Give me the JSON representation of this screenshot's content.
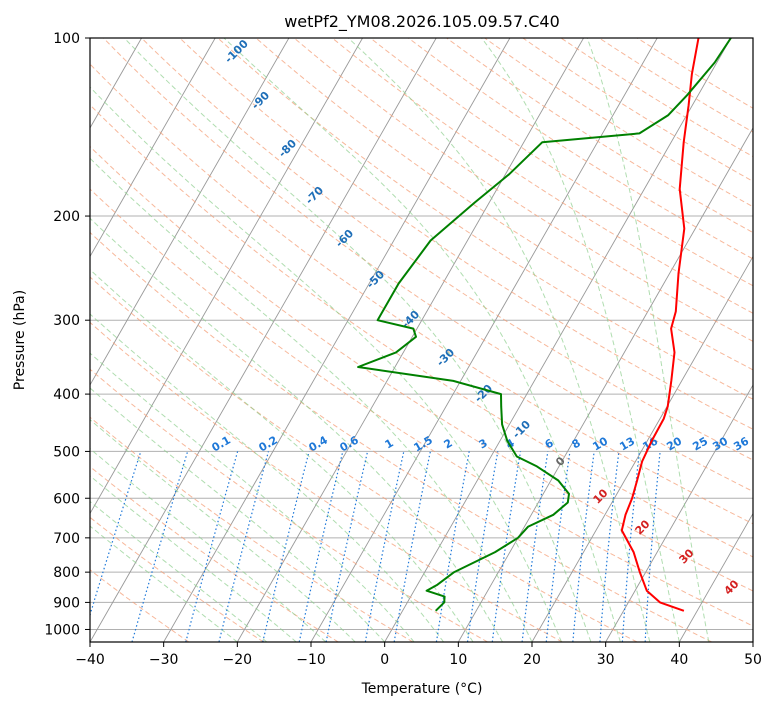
{
  "chart_data": {
    "type": "line",
    "title": "wetPf2_YM08.2026.105.09.57.C40",
    "xlabel": "Temperature (°C)",
    "ylabel": "Pressure (hPa)",
    "xlim": [
      -40,
      50
    ],
    "ylim": [
      1050,
      100
    ],
    "y_scale": "log",
    "grid": true,
    "x_ticks": [
      -40,
      -30,
      -20,
      -10,
      0,
      10,
      20,
      30,
      40,
      50
    ],
    "y_ticks": [
      100,
      200,
      300,
      400,
      500,
      600,
      700,
      800,
      900,
      1000
    ],
    "series": [
      {
        "color": "#ff0000",
        "points": [
          {
            "p": 930,
            "t": 38.2
          },
          {
            "p": 900,
            "t": 34.3
          },
          {
            "p": 860,
            "t": 31.6
          },
          {
            "p": 800,
            "t": 29.2
          },
          {
            "p": 740,
            "t": 26.8
          },
          {
            "p": 680,
            "t": 23.5
          },
          {
            "p": 640,
            "t": 22.8
          },
          {
            "p": 600,
            "t": 22.4
          },
          {
            "p": 560,
            "t": 21.7
          },
          {
            "p": 520,
            "t": 20.9
          },
          {
            "p": 480,
            "t": 20.6
          },
          {
            "p": 440,
            "t": 20.5
          },
          {
            "p": 420,
            "t": 20.1
          },
          {
            "p": 380,
            "t": 18.6
          },
          {
            "p": 340,
            "t": 16.8
          },
          {
            "p": 310,
            "t": 14.5
          },
          {
            "p": 290,
            "t": 13.8
          },
          {
            "p": 250,
            "t": 11.2
          },
          {
            "p": 210,
            "t": 8.5
          },
          {
            "p": 180,
            "t": 4.8
          },
          {
            "p": 150,
            "t": 1.7
          },
          {
            "p": 130,
            "t": -0.5
          },
          {
            "p": 115,
            "t": -2.5
          },
          {
            "p": 100,
            "t": -4.4
          }
        ]
      },
      {
        "color": "#008000",
        "points": [
          {
            "p": 930,
            "t": 4.5
          },
          {
            "p": 900,
            "t": 5.0
          },
          {
            "p": 880,
            "t": 4.6
          },
          {
            "p": 860,
            "t": 1.7
          },
          {
            "p": 840,
            "t": 2.7
          },
          {
            "p": 800,
            "t": 4.0
          },
          {
            "p": 740,
            "t": 8.0
          },
          {
            "p": 700,
            "t": 10.0
          },
          {
            "p": 670,
            "t": 10.5
          },
          {
            "p": 640,
            "t": 13.0
          },
          {
            "p": 610,
            "t": 14.0
          },
          {
            "p": 590,
            "t": 13.5
          },
          {
            "p": 560,
            "t": 11.0
          },
          {
            "p": 530,
            "t": 7.0
          },
          {
            "p": 510,
            "t": 3.5
          },
          {
            "p": 480,
            "t": 1.0
          },
          {
            "p": 450,
            "t": -1.0
          },
          {
            "p": 420,
            "t": -2.5
          },
          {
            "p": 400,
            "t": -3.5
          },
          {
            "p": 380,
            "t": -11.0
          },
          {
            "p": 360,
            "t": -25.0
          },
          {
            "p": 340,
            "t": -21.0
          },
          {
            "p": 320,
            "t": -19.5
          },
          {
            "p": 310,
            "t": -20.5
          },
          {
            "p": 300,
            "t": -26.0
          },
          {
            "p": 260,
            "t": -26.0
          },
          {
            "p": 220,
            "t": -25.0
          },
          {
            "p": 190,
            "t": -22.0
          },
          {
            "p": 170,
            "t": -19.5
          },
          {
            "p": 150,
            "t": -17.5
          },
          {
            "p": 145,
            "t": -5.0
          },
          {
            "p": 135,
            "t": -2.5
          },
          {
            "p": 125,
            "t": -1.5
          },
          {
            "p": 110,
            "t": -0.3
          },
          {
            "p": 100,
            "t": 0.0
          }
        ]
      }
    ],
    "mixing_ratio_labels": [
      "0.1",
      "0.2",
      "0.4",
      "0.6",
      "1",
      "1.5",
      "2",
      "3",
      "4",
      "6",
      "8",
      "10",
      "13",
      "16",
      "20",
      "25",
      "30",
      "36"
    ],
    "dry_adiabat_labels": [
      "-100",
      "-90",
      "-80",
      "-70",
      "-60",
      "-50",
      "-40",
      "-30",
      "-20",
      "-10"
    ],
    "moist_adiabat_labels": [
      "0",
      "10",
      "20",
      "30",
      "40"
    ],
    "colors": {
      "temperature": "#ff0000",
      "dewpoint": "#008000",
      "isotherm": "#999999",
      "dry_adiabat": "#f4a07a",
      "moist_adiabat": "#8fcf8f",
      "mixing_ratio": "#1e78d8",
      "dry_label": "#1f6fb8",
      "moist_label": "#d42020",
      "zero_label": "#666666"
    }
  }
}
